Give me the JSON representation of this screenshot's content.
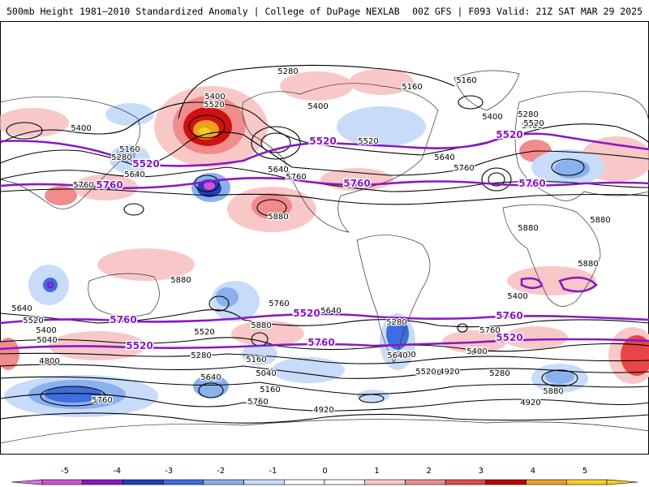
{
  "header": {
    "left": "500mb Height 1981–2010 Standardized Anomaly | College of DuPage NEXLAB",
    "right": "00Z GFS | F093 Valid: 21Z SAT MAR 29 2025"
  },
  "colorbar": {
    "ticks": [
      "-5",
      "-4",
      "-3",
      "-2",
      "-1",
      "0",
      "1",
      "2",
      "3",
      "4",
      "5"
    ],
    "colors": [
      "#d64fd6",
      "#8a18c4",
      "#1f3fb8",
      "#3d6ee0",
      "#8ab0ee",
      "#c8dcfa",
      "#ffffff",
      "#ffffff",
      "#f8c8c8",
      "#f08c8c",
      "#e84646",
      "#c00000",
      "#f0a020",
      "#ffd020"
    ]
  },
  "map": {
    "purple_labels": [
      "5520",
      "5760",
      "5520",
      "5760",
      "5520",
      "5760",
      "5760",
      "5520",
      "5520",
      "5760",
      "5520",
      "5760"
    ],
    "black_labels": [
      "5280",
      "5160",
      "5160",
      "5400",
      "5520",
      "5400",
      "5160",
      "5280",
      "5640",
      "5760",
      "5400",
      "5400",
      "5280",
      "5640",
      "5760",
      "5520",
      "5640",
      "5760",
      "5400",
      "5520",
      "5880",
      "5880",
      "5880",
      "5880",
      "5880",
      "5760",
      "5640",
      "5520",
      "5400",
      "5040",
      "5760",
      "5640",
      "5880",
      "5760",
      "5520",
      "5280",
      "5520",
      "5400",
      "5160",
      "5040",
      "4920",
      "4800",
      "5640",
      "5760",
      "5400",
      "5160",
      "5040",
      "4920",
      "5280",
      "5880",
      "4920",
      "4920",
      "5520",
      "5280",
      "5640",
      "5760",
      "5160",
      "5520",
      "5400"
    ]
  }
}
